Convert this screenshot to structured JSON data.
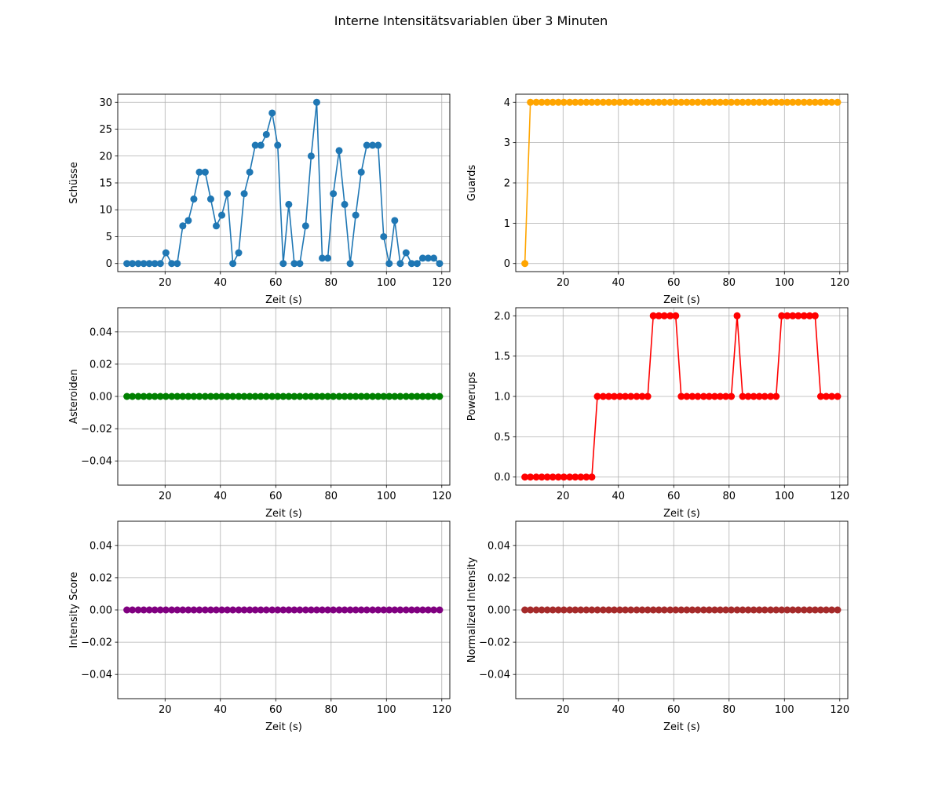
{
  "figure": {
    "title": "Interne Intensitätsvariablen über 3 Minuten"
  },
  "chart_data": [
    {
      "type": "line",
      "xlabel": "Zeit (s)",
      "ylabel": "Schüsse",
      "color": "#1f77b4",
      "grid": true,
      "xlim": [
        2.9,
        122.9
      ],
      "ylim": [
        -1.5,
        31.5
      ],
      "xticks": [
        20,
        40,
        60,
        80,
        100,
        120
      ],
      "yticks": [
        0,
        5,
        10,
        15,
        20,
        25,
        30
      ],
      "ytick_labels": [
        "0",
        "5",
        "10",
        "15",
        "20",
        "25",
        "30"
      ],
      "x": [
        6.2,
        8.2,
        10.3,
        12.3,
        14.3,
        16.3,
        18.3,
        20.3,
        22.4,
        24.4,
        26.4,
        28.4,
        30.4,
        32.4,
        34.5,
        36.5,
        38.5,
        40.5,
        42.5,
        44.5,
        46.6,
        48.6,
        50.6,
        52.6,
        54.6,
        56.6,
        58.7,
        60.7,
        62.7,
        64.7,
        66.7,
        68.7,
        70.8,
        72.8,
        74.8,
        76.8,
        78.8,
        80.8,
        82.9,
        84.9,
        86.9,
        88.9,
        90.9,
        92.9,
        95.0,
        97.0,
        99.0,
        101.0,
        103.0,
        105.0,
        107.1,
        109.1,
        111.1,
        113.1,
        115.1,
        117.1,
        119.2
      ],
      "y": [
        0,
        0,
        0,
        0,
        0,
        0,
        0,
        2,
        0,
        0,
        7,
        8,
        12,
        17,
        17,
        12,
        7,
        9,
        13,
        0,
        2,
        13,
        17,
        22,
        22,
        24,
        28,
        22,
        0,
        11,
        0,
        0,
        7,
        20,
        30,
        1,
        1,
        13,
        21,
        11,
        0,
        9,
        17,
        22,
        22,
        22,
        5,
        0,
        8,
        0,
        2,
        0,
        0,
        1,
        1,
        1,
        0
      ]
    },
    {
      "type": "line",
      "xlabel": "Zeit (s)",
      "ylabel": "Guards",
      "color": "#ffa500",
      "grid": true,
      "xlim": [
        2.9,
        122.9
      ],
      "ylim": [
        -0.2,
        4.2
      ],
      "xticks": [
        20,
        40,
        60,
        80,
        100,
        120
      ],
      "yticks": [
        0,
        1,
        2,
        3,
        4
      ],
      "ytick_labels": [
        "0",
        "1",
        "2",
        "3",
        "4"
      ],
      "x": [
        6.2,
        8.2,
        10.3,
        12.3,
        14.3,
        16.3,
        18.3,
        20.3,
        22.4,
        24.4,
        26.4,
        28.4,
        30.4,
        32.4,
        34.5,
        36.5,
        38.5,
        40.5,
        42.5,
        44.5,
        46.6,
        48.6,
        50.6,
        52.6,
        54.6,
        56.6,
        58.7,
        60.7,
        62.7,
        64.7,
        66.7,
        68.7,
        70.8,
        72.8,
        74.8,
        76.8,
        78.8,
        80.8,
        82.9,
        84.9,
        86.9,
        88.9,
        90.9,
        92.9,
        95.0,
        97.0,
        99.0,
        101.0,
        103.0,
        105.0,
        107.1,
        109.1,
        111.1,
        113.1,
        115.1,
        117.1,
        119.2
      ],
      "y": [
        0,
        4,
        4,
        4,
        4,
        4,
        4,
        4,
        4,
        4,
        4,
        4,
        4,
        4,
        4,
        4,
        4,
        4,
        4,
        4,
        4,
        4,
        4,
        4,
        4,
        4,
        4,
        4,
        4,
        4,
        4,
        4,
        4,
        4,
        4,
        4,
        4,
        4,
        4,
        4,
        4,
        4,
        4,
        4,
        4,
        4,
        4,
        4,
        4,
        4,
        4,
        4,
        4,
        4,
        4,
        4,
        4
      ]
    },
    {
      "type": "line",
      "xlabel": "Zeit (s)",
      "ylabel": "Asteroiden",
      "color": "#008000",
      "grid": true,
      "xlim": [
        2.9,
        122.9
      ],
      "ylim": [
        -0.055,
        0.055
      ],
      "xticks": [
        20,
        40,
        60,
        80,
        100,
        120
      ],
      "yticks": [
        -0.04,
        -0.02,
        0,
        0.02,
        0.04
      ],
      "ytick_labels": [
        "−0.04",
        "−0.02",
        "0.00",
        "0.02",
        "0.04"
      ],
      "x": [
        6.2,
        8.2,
        10.3,
        12.3,
        14.3,
        16.3,
        18.3,
        20.3,
        22.4,
        24.4,
        26.4,
        28.4,
        30.4,
        32.4,
        34.5,
        36.5,
        38.5,
        40.5,
        42.5,
        44.5,
        46.6,
        48.6,
        50.6,
        52.6,
        54.6,
        56.6,
        58.7,
        60.7,
        62.7,
        64.7,
        66.7,
        68.7,
        70.8,
        72.8,
        74.8,
        76.8,
        78.8,
        80.8,
        82.9,
        84.9,
        86.9,
        88.9,
        90.9,
        92.9,
        95.0,
        97.0,
        99.0,
        101.0,
        103.0,
        105.0,
        107.1,
        109.1,
        111.1,
        113.1,
        115.1,
        117.1,
        119.2
      ],
      "y": [
        0,
        0,
        0,
        0,
        0,
        0,
        0,
        0,
        0,
        0,
        0,
        0,
        0,
        0,
        0,
        0,
        0,
        0,
        0,
        0,
        0,
        0,
        0,
        0,
        0,
        0,
        0,
        0,
        0,
        0,
        0,
        0,
        0,
        0,
        0,
        0,
        0,
        0,
        0,
        0,
        0,
        0,
        0,
        0,
        0,
        0,
        0,
        0,
        0,
        0,
        0,
        0,
        0,
        0,
        0,
        0,
        0
      ]
    },
    {
      "type": "line",
      "xlabel": "Zeit (s)",
      "ylabel": "Powerups",
      "color": "#ff0000",
      "grid": true,
      "xlim": [
        2.9,
        122.9
      ],
      "ylim": [
        -0.1,
        2.1
      ],
      "xticks": [
        20,
        40,
        60,
        80,
        100,
        120
      ],
      "yticks": [
        0,
        0.5,
        1,
        1.5,
        2
      ],
      "ytick_labels": [
        "0.0",
        "0.5",
        "1.0",
        "1.5",
        "2.0"
      ],
      "x": [
        6.2,
        8.2,
        10.3,
        12.3,
        14.3,
        16.3,
        18.3,
        20.3,
        22.4,
        24.4,
        26.4,
        28.4,
        30.4,
        32.4,
        34.5,
        36.5,
        38.5,
        40.5,
        42.5,
        44.5,
        46.6,
        48.6,
        50.6,
        52.6,
        54.6,
        56.6,
        58.7,
        60.7,
        62.7,
        64.7,
        66.7,
        68.7,
        70.8,
        72.8,
        74.8,
        76.8,
        78.8,
        80.8,
        82.9,
        84.9,
        86.9,
        88.9,
        90.9,
        92.9,
        95.0,
        97.0,
        99.0,
        101.0,
        103.0,
        105.0,
        107.1,
        109.1,
        111.1,
        113.1,
        115.1,
        117.1,
        119.2
      ],
      "y": [
        0,
        0,
        0,
        0,
        0,
        0,
        0,
        0,
        0,
        0,
        0,
        0,
        0,
        1,
        1,
        1,
        1,
        1,
        1,
        1,
        1,
        1,
        1,
        2,
        2,
        2,
        2,
        2,
        1,
        1,
        1,
        1,
        1,
        1,
        1,
        1,
        1,
        1,
        2,
        1,
        1,
        1,
        1,
        1,
        1,
        1,
        2,
        2,
        2,
        2,
        2,
        2,
        2,
        1,
        1,
        1,
        1
      ]
    },
    {
      "type": "line",
      "xlabel": "Zeit (s)",
      "ylabel": "Intensity Score",
      "color": "#800080",
      "grid": true,
      "xlim": [
        2.9,
        122.9
      ],
      "ylim": [
        -0.055,
        0.055
      ],
      "xticks": [
        20,
        40,
        60,
        80,
        100,
        120
      ],
      "yticks": [
        -0.04,
        -0.02,
        0,
        0.02,
        0.04
      ],
      "ytick_labels": [
        "−0.04",
        "−0.02",
        "0.00",
        "0.02",
        "0.04"
      ],
      "x": [
        6.2,
        8.2,
        10.3,
        12.3,
        14.3,
        16.3,
        18.3,
        20.3,
        22.4,
        24.4,
        26.4,
        28.4,
        30.4,
        32.4,
        34.5,
        36.5,
        38.5,
        40.5,
        42.5,
        44.5,
        46.6,
        48.6,
        50.6,
        52.6,
        54.6,
        56.6,
        58.7,
        60.7,
        62.7,
        64.7,
        66.7,
        68.7,
        70.8,
        72.8,
        74.8,
        76.8,
        78.8,
        80.8,
        82.9,
        84.9,
        86.9,
        88.9,
        90.9,
        92.9,
        95.0,
        97.0,
        99.0,
        101.0,
        103.0,
        105.0,
        107.1,
        109.1,
        111.1,
        113.1,
        115.1,
        117.1,
        119.2
      ],
      "y": [
        0,
        0,
        0,
        0,
        0,
        0,
        0,
        0,
        0,
        0,
        0,
        0,
        0,
        0,
        0,
        0,
        0,
        0,
        0,
        0,
        0,
        0,
        0,
        0,
        0,
        0,
        0,
        0,
        0,
        0,
        0,
        0,
        0,
        0,
        0,
        0,
        0,
        0,
        0,
        0,
        0,
        0,
        0,
        0,
        0,
        0,
        0,
        0,
        0,
        0,
        0,
        0,
        0,
        0,
        0,
        0,
        0
      ]
    },
    {
      "type": "line",
      "xlabel": "Zeit (s)",
      "ylabel": "Normalized Intensity",
      "color": "#a52a2a",
      "grid": true,
      "xlim": [
        2.9,
        122.9
      ],
      "ylim": [
        -0.055,
        0.055
      ],
      "xticks": [
        20,
        40,
        60,
        80,
        100,
        120
      ],
      "yticks": [
        -0.04,
        -0.02,
        0,
        0.02,
        0.04
      ],
      "ytick_labels": [
        "−0.04",
        "−0.02",
        "0.00",
        "0.02",
        "0.04"
      ],
      "x": [
        6.2,
        8.2,
        10.3,
        12.3,
        14.3,
        16.3,
        18.3,
        20.3,
        22.4,
        24.4,
        26.4,
        28.4,
        30.4,
        32.4,
        34.5,
        36.5,
        38.5,
        40.5,
        42.5,
        44.5,
        46.6,
        48.6,
        50.6,
        52.6,
        54.6,
        56.6,
        58.7,
        60.7,
        62.7,
        64.7,
        66.7,
        68.7,
        70.8,
        72.8,
        74.8,
        76.8,
        78.8,
        80.8,
        82.9,
        84.9,
        86.9,
        88.9,
        90.9,
        92.9,
        95.0,
        97.0,
        99.0,
        101.0,
        103.0,
        105.0,
        107.1,
        109.1,
        111.1,
        113.1,
        115.1,
        117.1,
        119.2
      ],
      "y": [
        0,
        0,
        0,
        0,
        0,
        0,
        0,
        0,
        0,
        0,
        0,
        0,
        0,
        0,
        0,
        0,
        0,
        0,
        0,
        0,
        0,
        0,
        0,
        0,
        0,
        0,
        0,
        0,
        0,
        0,
        0,
        0,
        0,
        0,
        0,
        0,
        0,
        0,
        0,
        0,
        0,
        0,
        0,
        0,
        0,
        0,
        0,
        0,
        0,
        0,
        0,
        0,
        0,
        0,
        0,
        0,
        0
      ]
    }
  ]
}
